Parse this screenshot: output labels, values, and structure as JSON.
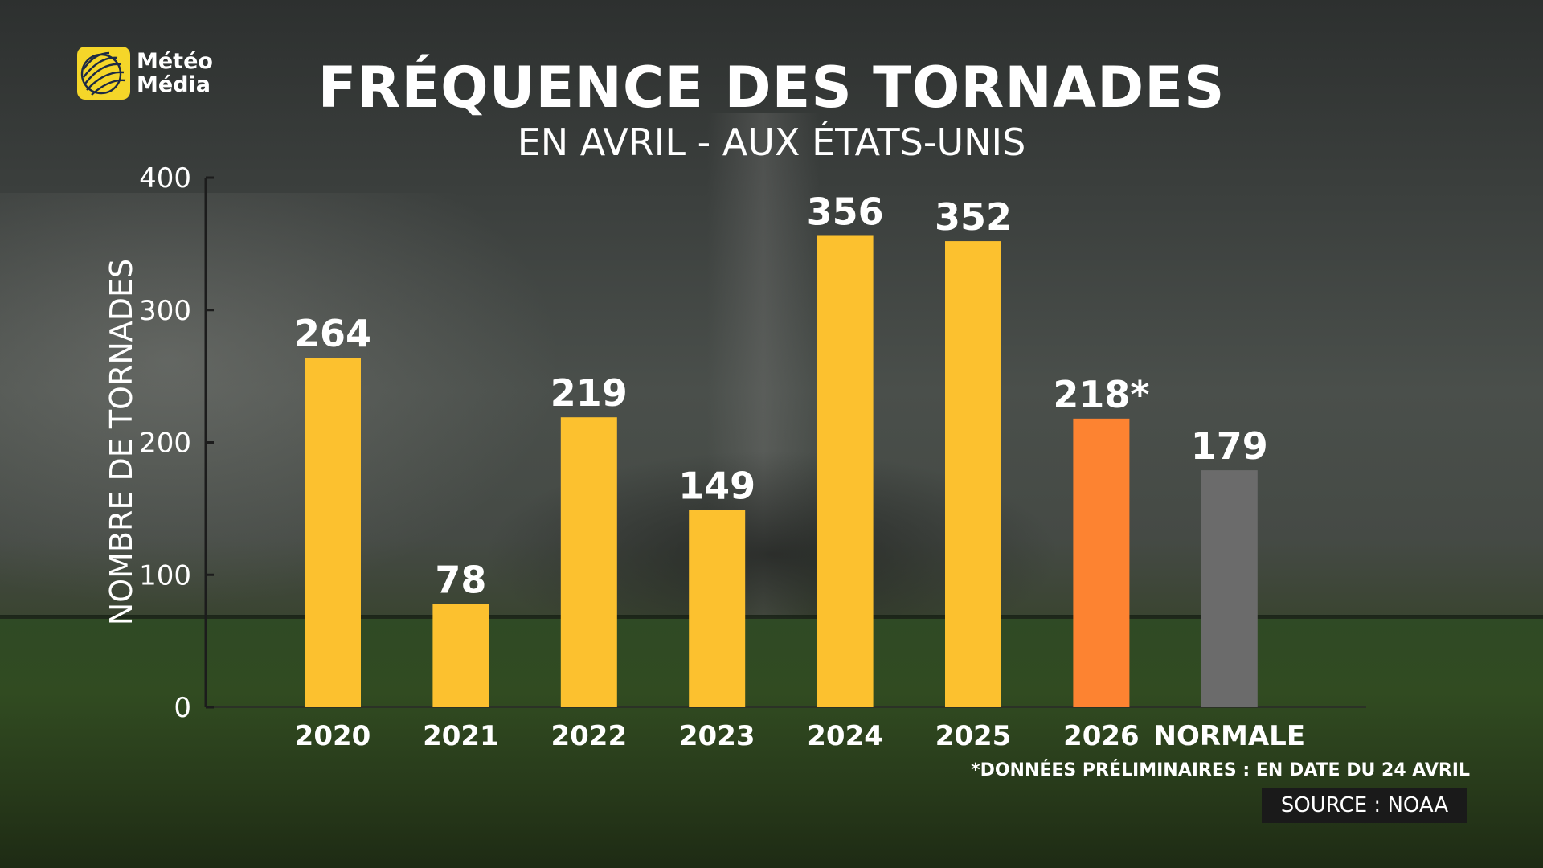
{
  "brand": {
    "logo_line1": "Météo",
    "logo_line2": "Média"
  },
  "title": "FRÉQUENCE DES TORNADES",
  "subtitle": "EN AVRIL - AUX ÉTATS-UNIS",
  "footnote": "*DONNÉES PRÉLIMINAIRES : EN DATE DU 24 AVRIL",
  "source": "SOURCE : NOAA",
  "chart_data": {
    "type": "bar",
    "title": "FRÉQUENCE DES TORNADES",
    "subtitle": "EN AVRIL - AUX ÉTATS-UNIS",
    "xlabel": "",
    "ylabel": "NOMBRE DE TORNADES",
    "categories": [
      "2020",
      "2021",
      "2022",
      "2023",
      "2024",
      "2025",
      "2026",
      "NORMALE"
    ],
    "values": [
      264,
      78,
      219,
      149,
      356,
      352,
      218,
      179
    ],
    "value_labels": [
      "264",
      "78",
      "219",
      "149",
      "356",
      "352",
      "218*",
      "179"
    ],
    "ylim": [
      0,
      400
    ],
    "yticks": [
      0,
      100,
      200,
      300,
      400
    ],
    "grid": false,
    "legend": "none",
    "bar_colors": [
      "#fcc12f",
      "#fcc12f",
      "#fcc12f",
      "#fcc12f",
      "#fcc12f",
      "#fcc12f",
      "#fd8331",
      "#6b6b6b"
    ]
  }
}
